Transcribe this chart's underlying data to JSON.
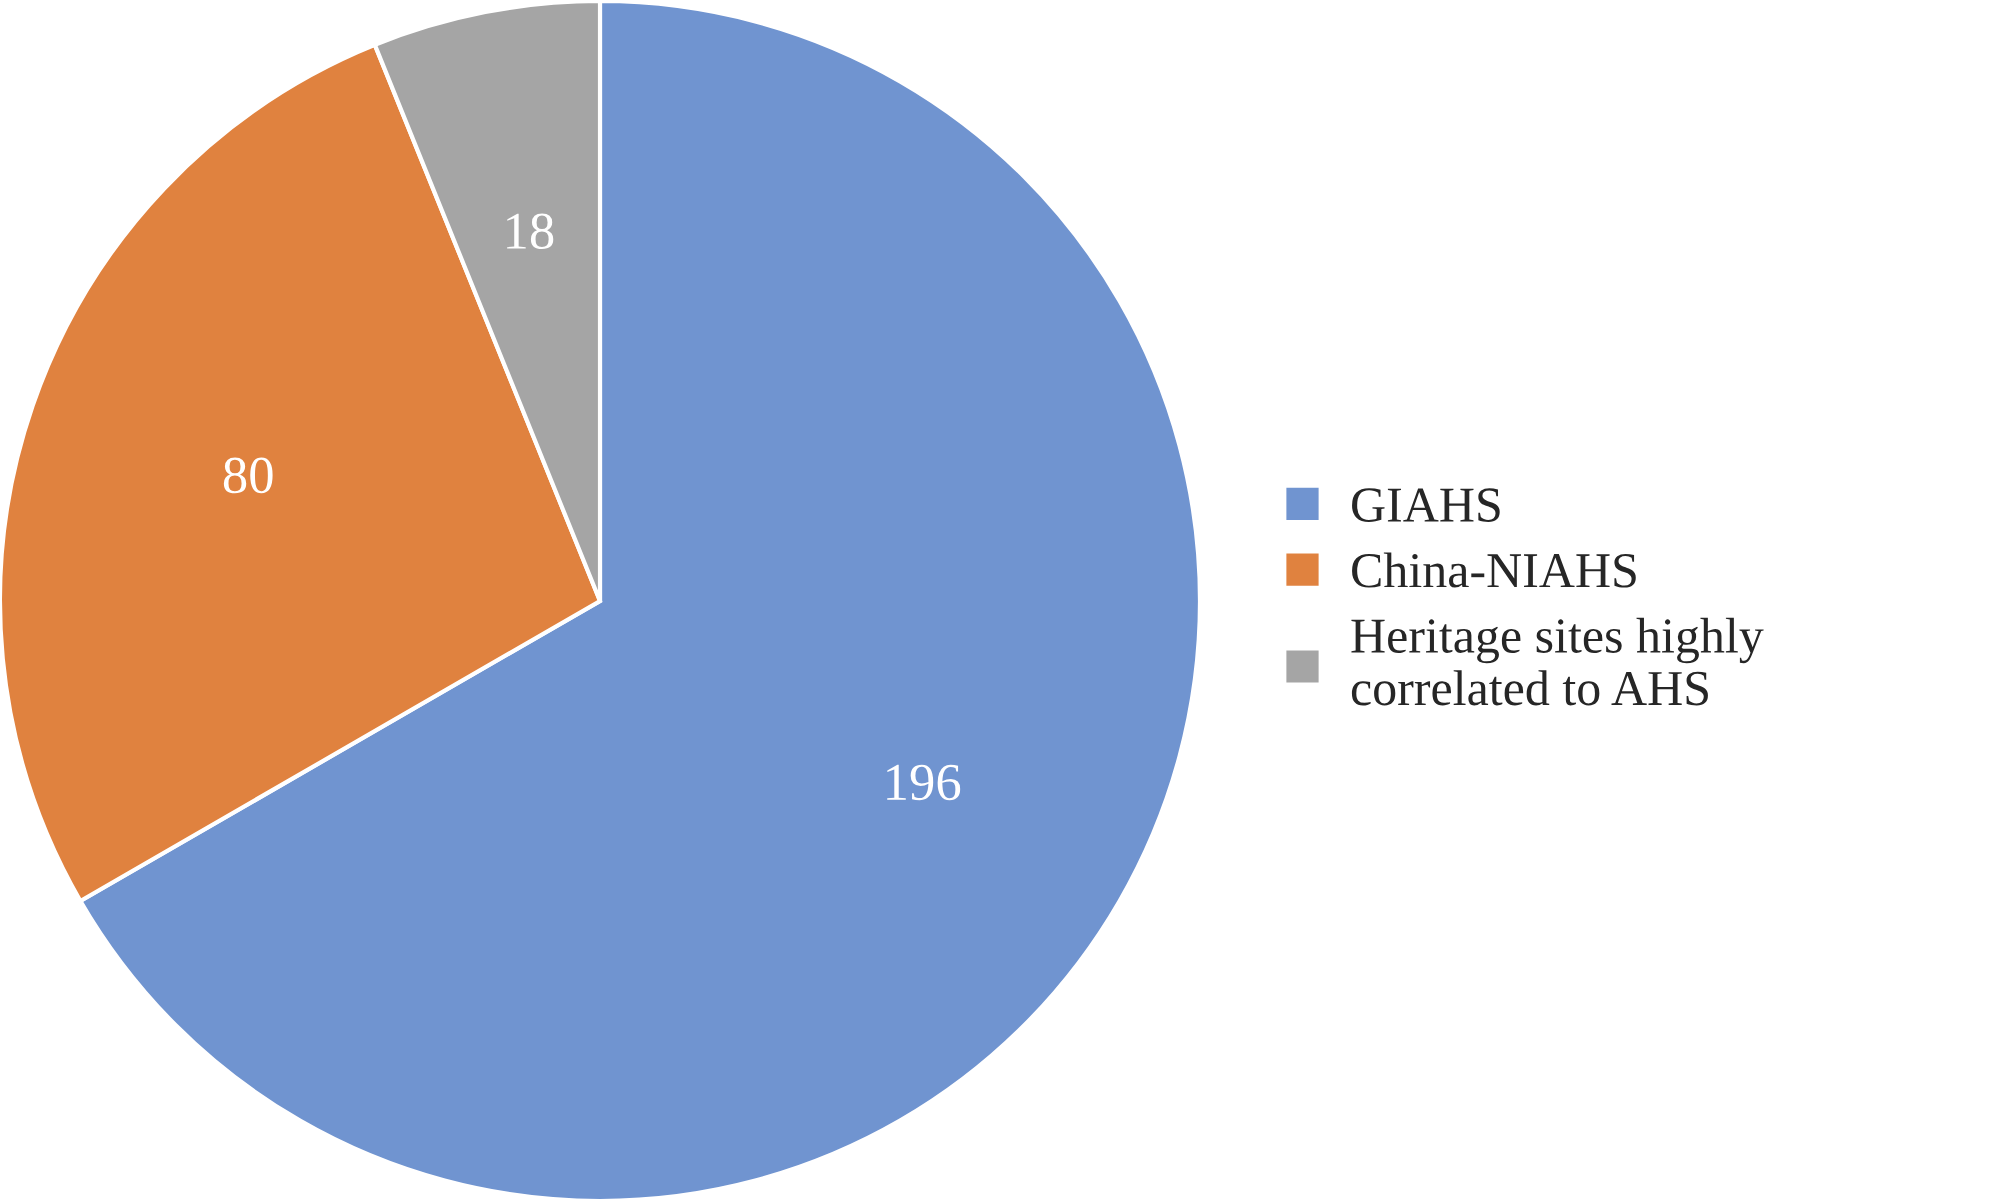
{
  "chart_data": {
    "type": "pie",
    "categories": [
      "GIAHS",
      "China-NIAHS",
      "Heritage sites highly\ncorrelated to AHS"
    ],
    "values": [
      196,
      80,
      18
    ],
    "colors": [
      "#7094d0",
      "#e0823f",
      "#a5a5a5"
    ],
    "data_labels": true,
    "legend": "right"
  }
}
